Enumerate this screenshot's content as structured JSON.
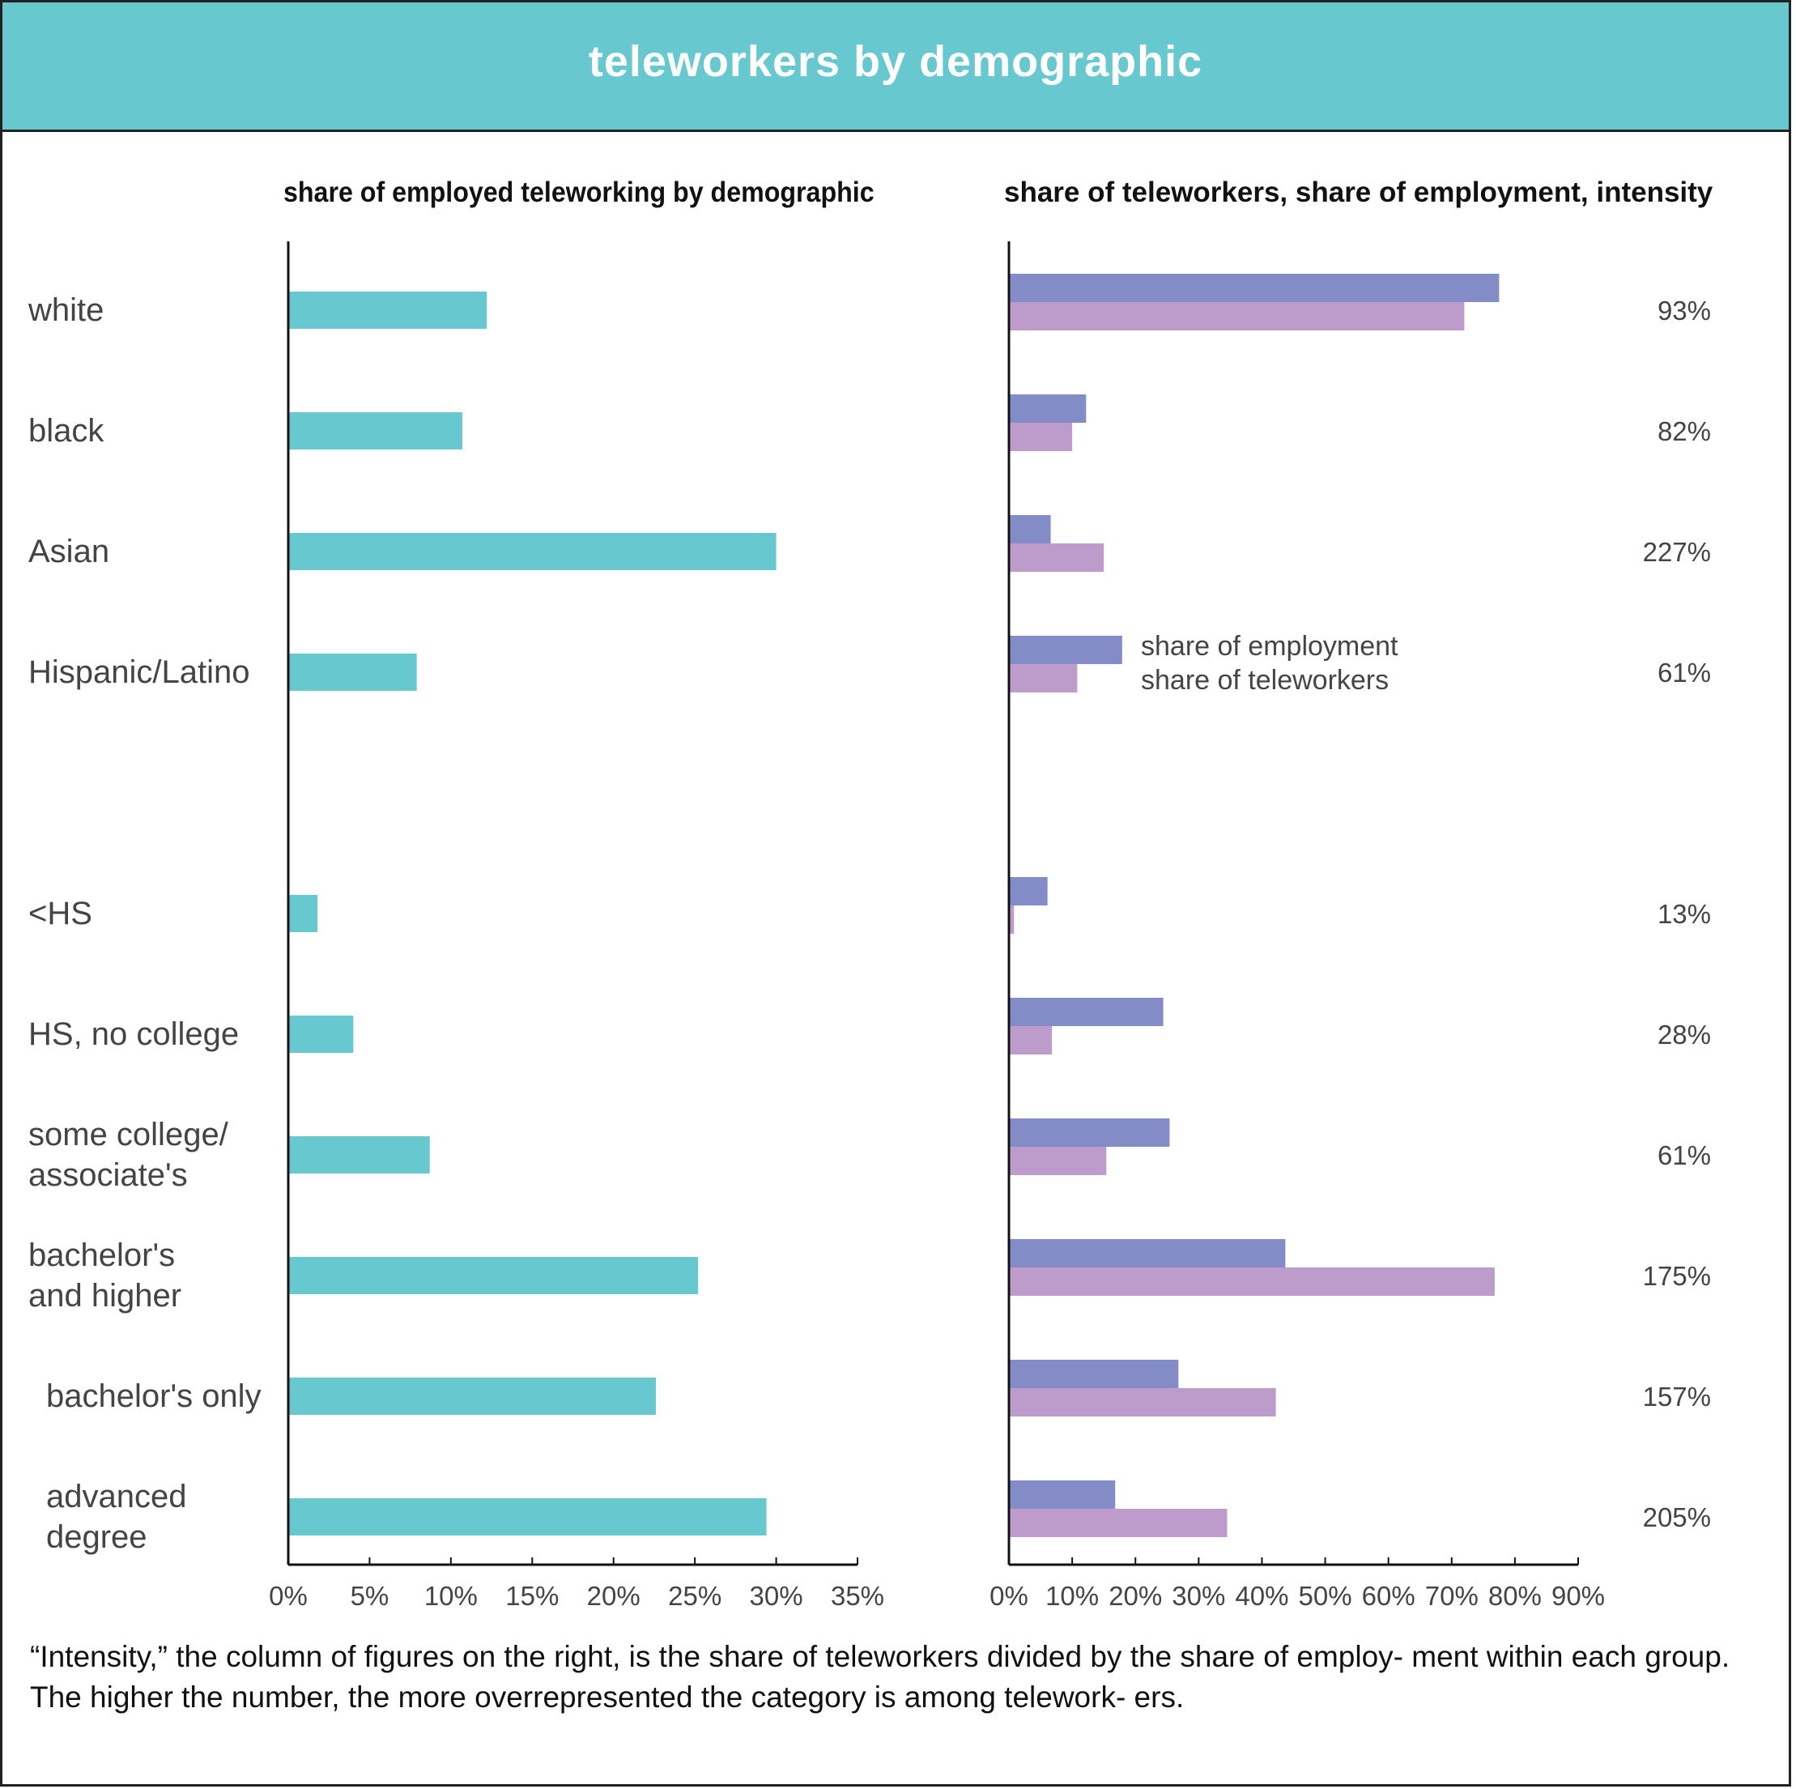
{
  "colors": {
    "header_bg": "#67c8cf",
    "left_bar": "#67c8cf",
    "share_of_employment": "#838cc6",
    "share_of_teleworkers": "#bd9ccc",
    "axis": "#111111",
    "text": "#444444"
  },
  "chart_data": [
    {
      "type": "bar",
      "orientation": "horizontal",
      "title": "share of employed teleworking by demographic",
      "categories": [
        "white",
        "black",
        "Asian",
        "Hispanic/Latino",
        "<HS",
        "HS, no college",
        "some college/ associate's",
        "bachelor's and higher",
        "bachelor's only",
        "advanced degree"
      ],
      "category_lines": [
        [
          "white"
        ],
        [
          "black"
        ],
        [
          "Asian"
        ],
        [
          "Hispanic/Latino"
        ],
        [
          "<HS"
        ],
        [
          "HS, no college"
        ],
        [
          "some college/",
          "associate's"
        ],
        [
          "bachelor's",
          "and higher"
        ],
        [
          "bachelor's only"
        ],
        [
          "advanced",
          "degree"
        ]
      ],
      "values": [
        12.2,
        10.7,
        30.0,
        7.9,
        1.8,
        4.0,
        8.7,
        25.2,
        22.6,
        29.4
      ],
      "xlim": [
        0,
        35
      ],
      "xticks": [
        0,
        5,
        10,
        15,
        20,
        25,
        30,
        35
      ],
      "xtick_labels": [
        "0%",
        "5%",
        "10%",
        "15%",
        "20%",
        "25%",
        "30%",
        "35%"
      ]
    },
    {
      "type": "bar",
      "orientation": "horizontal",
      "title": "share of teleworkers, share of employment, intensity",
      "categories": [
        "white",
        "black",
        "Asian",
        "Hispanic/Latino",
        "<HS",
        "HS, no college",
        "some college/ associate's",
        "bachelor's and higher",
        "bachelor's only",
        "advanced degree"
      ],
      "series": [
        {
          "name": "share of employment",
          "values": [
            77.5,
            12.2,
            6.6,
            17.9,
            6.1,
            24.4,
            25.4,
            43.7,
            26.8,
            16.8
          ]
        },
        {
          "name": "share of teleworkers",
          "values": [
            72.0,
            10.0,
            15.0,
            10.8,
            0.8,
            6.8,
            15.4,
            76.8,
            42.2,
            34.5
          ]
        }
      ],
      "intensity": [
        "93%",
        "82%",
        "227%",
        "61%",
        "13%",
        "28%",
        "61%",
        "175%",
        "157%",
        "205%"
      ],
      "xlim": [
        0,
        90
      ],
      "xticks": [
        0,
        10,
        20,
        30,
        40,
        50,
        60,
        70,
        80,
        90
      ],
      "xtick_labels": [
        "0%",
        "10%",
        "20%",
        "30%",
        "40%",
        "50%",
        "60%",
        "70%",
        "80%",
        "90%"
      ],
      "legend_location": "inline, beside Hispanic/Latino bars"
    }
  ],
  "header": {
    "title": "teleworkers by demographic"
  },
  "footnote": "“Intensity,” the column of figures on the right, is the share of teleworkers divided by the share of employ- ment within each group. The higher the number, the more overrepresented the category is among telework- ers."
}
